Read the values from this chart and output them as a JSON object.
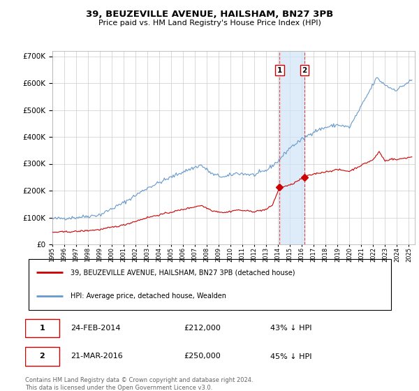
{
  "title": "39, BEUZEVILLE AVENUE, HAILSHAM, BN27 3PB",
  "subtitle": "Price paid vs. HM Land Registry's House Price Index (HPI)",
  "legend_line1": "39, BEUZEVILLE AVENUE, HAILSHAM, BN27 3PB (detached house)",
  "legend_line2": "HPI: Average price, detached house, Wealden",
  "transactions": [
    {
      "label": "1",
      "date": "24-FEB-2014",
      "price": 212000,
      "pct": "43% ↓ HPI",
      "year": 2014.12
    },
    {
      "label": "2",
      "date": "21-MAR-2016",
      "price": 250000,
      "pct": "45% ↓ HPI",
      "year": 2016.21
    }
  ],
  "footer": "Contains HM Land Registry data © Crown copyright and database right 2024.\nThis data is licensed under the Open Government Licence v3.0.",
  "hpi_color": "#6699cc",
  "price_color": "#cc0000",
  "transaction_color": "#cc0000",
  "vline_color": "#dd4444",
  "vshade_color": "#d0e4f7",
  "ylim": [
    0,
    720000
  ],
  "yticks": [
    0,
    100000,
    200000,
    300000,
    400000,
    500000,
    600000,
    700000
  ],
  "xlim_start": 1995.0,
  "xlim_end": 2025.5
}
